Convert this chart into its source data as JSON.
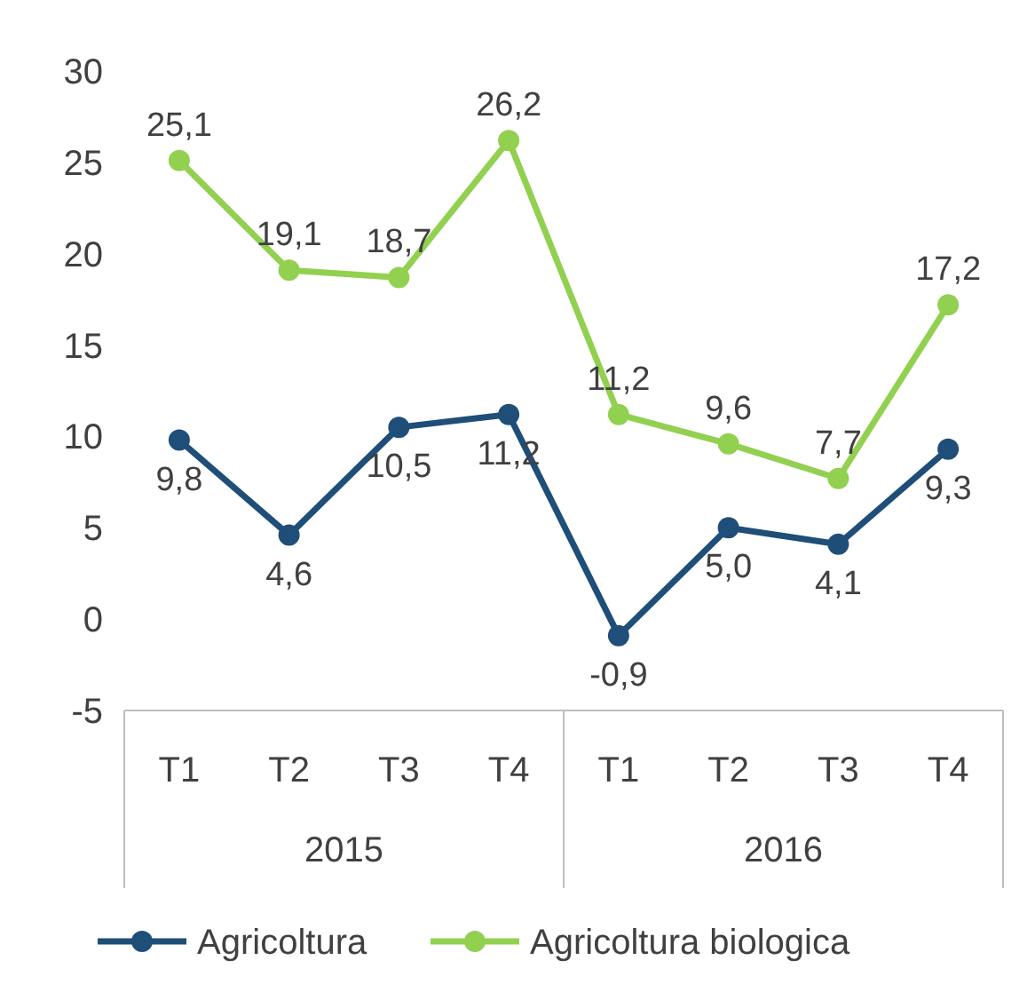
{
  "chart_data": {
    "type": "line",
    "categories": [
      "T1",
      "T2",
      "T3",
      "T4",
      "T1",
      "T2",
      "T3",
      "T4"
    ],
    "annotations": [
      "2015",
      "2016"
    ],
    "series": [
      {
        "name": "Agricoltura",
        "color": "#1f4e79",
        "values": [
          9.8,
          4.6,
          10.5,
          11.2,
          -0.9,
          5.0,
          4.1,
          9.3
        ],
        "value_labels": [
          "9,8",
          "4,6",
          "10,5",
          "11,2",
          "-0,9",
          "5,0",
          "4,1",
          "9,3"
        ]
      },
      {
        "name": "Agricoltura biologica",
        "color": "#92d050",
        "values": [
          25.1,
          19.1,
          18.7,
          26.2,
          11.2,
          9.6,
          7.7,
          17.2
        ],
        "value_labels": [
          "25,1",
          "19,1",
          "18,7",
          "26,2",
          "11,2",
          "9,6",
          "7,7",
          "17,2"
        ]
      }
    ],
    "ylim": [
      -5,
      30
    ],
    "yticks": [
      -5,
      0,
      5,
      10,
      15,
      20,
      25,
      30
    ],
    "marker": "circle",
    "line_style": "solid",
    "legend": "bottom"
  }
}
